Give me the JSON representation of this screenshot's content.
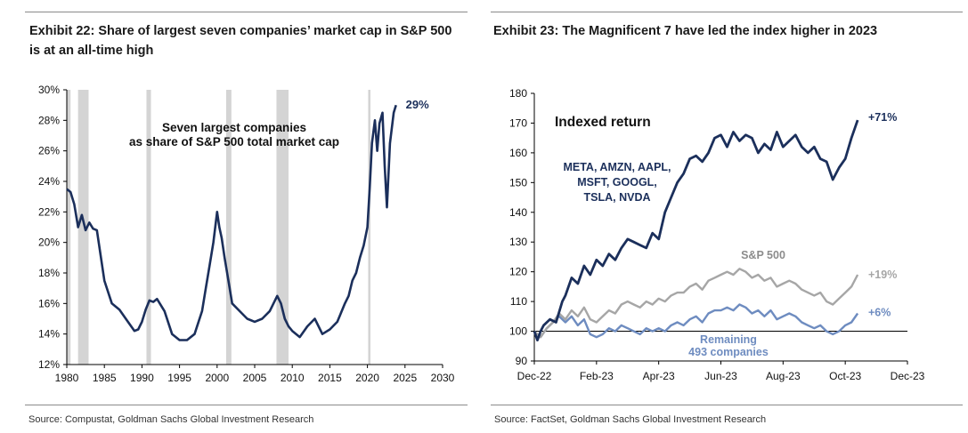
{
  "left": {
    "title": "Exhibit 22: Share of largest seven companies’ market cap in S&P 500 is at an all-time high",
    "source": "Source: Compustat, Goldman Sachs Global Investment Research",
    "chart_data": {
      "type": "line",
      "title": "Seven largest companies as share of S&P 500 total market cap",
      "annotation_lines": [
        "Seven largest companies",
        "as share of S&P 500 total market cap"
      ],
      "end_label": "29%",
      "xlim": [
        1980,
        2030
      ],
      "ylim": [
        12,
        30
      ],
      "x_ticks": [
        1980,
        1985,
        1990,
        1995,
        2000,
        2005,
        2010,
        2015,
        2020,
        2025,
        2030
      ],
      "y_ticks": [
        12,
        14,
        16,
        18,
        20,
        22,
        24,
        26,
        28,
        30
      ],
      "y_tick_labels": [
        "12%",
        "14%",
        "16%",
        "18%",
        "20%",
        "22%",
        "24%",
        "26%",
        "28%",
        "30%"
      ],
      "recessions": [
        [
          1980.0,
          1980.5
        ],
        [
          1981.5,
          1982.9
        ],
        [
          1990.6,
          1991.2
        ],
        [
          2001.2,
          2001.9
        ],
        [
          2007.9,
          2009.5
        ],
        [
          2020.1,
          2020.4
        ]
      ],
      "series": [
        {
          "name": "Seven largest share",
          "x": [
            1980,
            1980.5,
            1981,
            1981.5,
            1982,
            1982.5,
            1983,
            1983.5,
            1984,
            1985,
            1986,
            1987,
            1988,
            1989,
            1989.5,
            1990,
            1990.5,
            1991,
            1991.5,
            1992,
            1993,
            1994,
            1995,
            1996,
            1997,
            1998,
            1998.5,
            1999,
            1999.5,
            2000,
            2000.3,
            2000.6,
            2001,
            2001.5,
            2002,
            2003,
            2004,
            2005,
            2006,
            2007,
            2008,
            2008.5,
            2009,
            2009.5,
            2010,
            2011,
            2012,
            2013,
            2014,
            2015,
            2016,
            2017,
            2017.5,
            2018,
            2018.5,
            2019,
            2019.5,
            2020,
            2020.3,
            2020.6,
            2021,
            2021.3,
            2021.6,
            2022,
            2022.3,
            2022.6,
            2023,
            2023.5,
            2023.8
          ],
          "values": [
            23.5,
            23.3,
            22.5,
            21.0,
            21.8,
            20.8,
            21.3,
            20.9,
            20.8,
            17.5,
            16.0,
            15.6,
            14.9,
            14.2,
            14.3,
            14.8,
            15.6,
            16.2,
            16.1,
            16.3,
            15.5,
            14.0,
            13.6,
            13.6,
            14.0,
            15.5,
            17.0,
            18.5,
            20.0,
            22.0,
            21.0,
            20.3,
            19.0,
            17.5,
            16.0,
            15.5,
            15.0,
            14.8,
            15.0,
            15.5,
            16.5,
            16.0,
            15.0,
            14.5,
            14.2,
            13.8,
            14.5,
            15.0,
            14.0,
            14.3,
            14.8,
            16.0,
            16.5,
            17.5,
            18.0,
            19.0,
            19.8,
            21.0,
            23.5,
            26.5,
            28.0,
            26.0,
            27.8,
            28.5,
            25.0,
            22.3,
            26.5,
            28.5,
            29.0
          ]
        }
      ]
    }
  },
  "right": {
    "title": "Exhibit 23: The Magnificent 7 have led the index higher in 2023",
    "source": "Source: FactSet, Goldman Sachs Global Investment Research",
    "chart_data": {
      "type": "line",
      "title": "Indexed return",
      "ylim": [
        90,
        180
      ],
      "y_ticks": [
        90,
        100,
        110,
        120,
        130,
        140,
        150,
        160,
        170,
        180
      ],
      "x_ticks": [
        0,
        2,
        4,
        6,
        8,
        10,
        12
      ],
      "x_tick_labels": [
        "Dec-22",
        "Feb-23",
        "Apr-23",
        "Jun-23",
        "Aug-23",
        "Oct-23",
        "Dec-23"
      ],
      "xlim": [
        0,
        12
      ],
      "x_units": "months since Dec-22",
      "reference_line": 100,
      "series": [
        {
          "name": "META, AMZN, AAPL, MSFT, GOOGL, TSLA, NVDA",
          "label_lines": [
            "META, AMZN, AAPL,",
            "MSFT, GOOGL,",
            "TSLA, NVDA"
          ],
          "end_label": "+71%",
          "color": "#1b2f5b",
          "x": [
            0,
            0.1,
            0.2,
            0.3,
            0.5,
            0.7,
            0.9,
            1.0,
            1.2,
            1.4,
            1.6,
            1.8,
            2.0,
            2.2,
            2.4,
            2.6,
            2.8,
            3.0,
            3.2,
            3.4,
            3.6,
            3.8,
            4.0,
            4.2,
            4.4,
            4.6,
            4.8,
            5.0,
            5.2,
            5.4,
            5.6,
            5.8,
            6.0,
            6.2,
            6.4,
            6.6,
            6.8,
            7.0,
            7.2,
            7.4,
            7.6,
            7.8,
            8.0,
            8.2,
            8.4,
            8.6,
            8.8,
            9.0,
            9.2,
            9.4,
            9.6,
            9.8,
            10.0,
            10.2,
            10.4
          ],
          "values": [
            100,
            97,
            100,
            102,
            104,
            103,
            110,
            112,
            118,
            116,
            122,
            119,
            124,
            122,
            126,
            124,
            128,
            131,
            130,
            129,
            128,
            133,
            131,
            140,
            145,
            150,
            153,
            158,
            159,
            157,
            160,
            165,
            166,
            162,
            167,
            164,
            166,
            165,
            160,
            163,
            161,
            167,
            162,
            164,
            166,
            162,
            160,
            162,
            158,
            157,
            151,
            155,
            158,
            165,
            171
          ]
        },
        {
          "name": "S&P 500",
          "label_lines": [
            "S&P 500"
          ],
          "end_label": "+19%",
          "color": "#a6a6a6",
          "x": [
            0,
            0.2,
            0.4,
            0.6,
            0.8,
            1.0,
            1.2,
            1.4,
            1.6,
            1.8,
            2.0,
            2.2,
            2.4,
            2.6,
            2.8,
            3.0,
            3.2,
            3.4,
            3.6,
            3.8,
            4.0,
            4.2,
            4.4,
            4.6,
            4.8,
            5.0,
            5.2,
            5.4,
            5.6,
            5.8,
            6.0,
            6.2,
            6.4,
            6.6,
            6.8,
            7.0,
            7.2,
            7.4,
            7.6,
            7.8,
            8.0,
            8.2,
            8.4,
            8.6,
            8.8,
            9.0,
            9.2,
            9.4,
            9.6,
            9.8,
            10.0,
            10.2,
            10.4
          ],
          "values": [
            100,
            98,
            101,
            103,
            106,
            104,
            107,
            105,
            108,
            104,
            103,
            105,
            107,
            106,
            109,
            110,
            109,
            108,
            110,
            109,
            111,
            110,
            112,
            113,
            113,
            115,
            116,
            114,
            117,
            118,
            119,
            120,
            119,
            121,
            120,
            118,
            119,
            117,
            118,
            115,
            116,
            117,
            116,
            114,
            113,
            112,
            113,
            110,
            109,
            111,
            113,
            115,
            119
          ]
        },
        {
          "name": "Remaining 493 companies",
          "label_lines": [
            "Remaining",
            "493 companies"
          ],
          "end_label": "+6%",
          "color": "#6e8cc0",
          "x": [
            0,
            0.2,
            0.4,
            0.6,
            0.8,
            1.0,
            1.2,
            1.4,
            1.6,
            1.8,
            2.0,
            2.2,
            2.4,
            2.6,
            2.8,
            3.0,
            3.2,
            3.4,
            3.6,
            3.8,
            4.0,
            4.2,
            4.4,
            4.6,
            4.8,
            5.0,
            5.2,
            5.4,
            5.6,
            5.8,
            6.0,
            6.2,
            6.4,
            6.6,
            6.8,
            7.0,
            7.2,
            7.4,
            7.6,
            7.8,
            8.0,
            8.2,
            8.4,
            8.6,
            8.8,
            9.0,
            9.2,
            9.4,
            9.6,
            9.8,
            10.0,
            10.2,
            10.4
          ],
          "values": [
            100,
            98,
            101,
            103,
            105,
            103,
            105,
            102,
            104,
            99,
            98,
            99,
            101,
            100,
            102,
            101,
            100,
            99,
            101,
            100,
            101,
            100,
            102,
            103,
            102,
            104,
            105,
            103,
            106,
            107,
            107,
            108,
            107,
            109,
            108,
            106,
            107,
            105,
            107,
            104,
            105,
            106,
            105,
            103,
            102,
            101,
            102,
            100,
            99,
            100,
            102,
            103,
            106
          ]
        }
      ]
    }
  }
}
